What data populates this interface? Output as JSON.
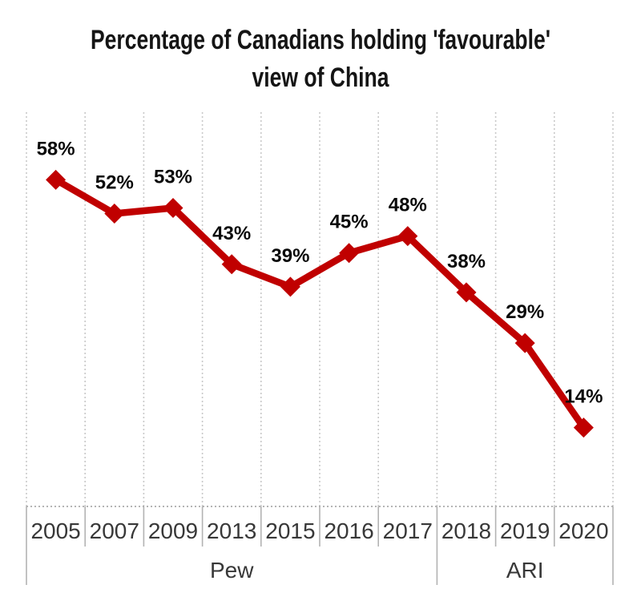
{
  "title": {
    "line1": "Percentage of Canadians holding 'favourable'",
    "line2": "view of China"
  },
  "chart_data": {
    "type": "line",
    "title": "Percentage of Canadians holding 'favourable' view of China",
    "categories": [
      "2005",
      "2007",
      "2009",
      "2013",
      "2015",
      "2016",
      "2017",
      "2018",
      "2019",
      "2020"
    ],
    "values": [
      58,
      52,
      53,
      43,
      39,
      45,
      48,
      38,
      29,
      14
    ],
    "point_labels": [
      "58%",
      "52%",
      "53%",
      "43%",
      "39%",
      "45%",
      "48%",
      "38%",
      "29%",
      "14%"
    ],
    "groups": [
      {
        "label": "Pew",
        "span": 7
      },
      {
        "label": "ARI",
        "span": 3
      }
    ],
    "xlabel": "",
    "ylabel": "",
    "ylim": [
      0,
      70
    ],
    "grid": "vertical-dotted",
    "legend": "none",
    "marker": "diamond",
    "colors": {
      "series": "#C00000",
      "data_label": "#0a0a0a",
      "gridline": "#c9c9c9",
      "axis_text": "#383838"
    }
  }
}
